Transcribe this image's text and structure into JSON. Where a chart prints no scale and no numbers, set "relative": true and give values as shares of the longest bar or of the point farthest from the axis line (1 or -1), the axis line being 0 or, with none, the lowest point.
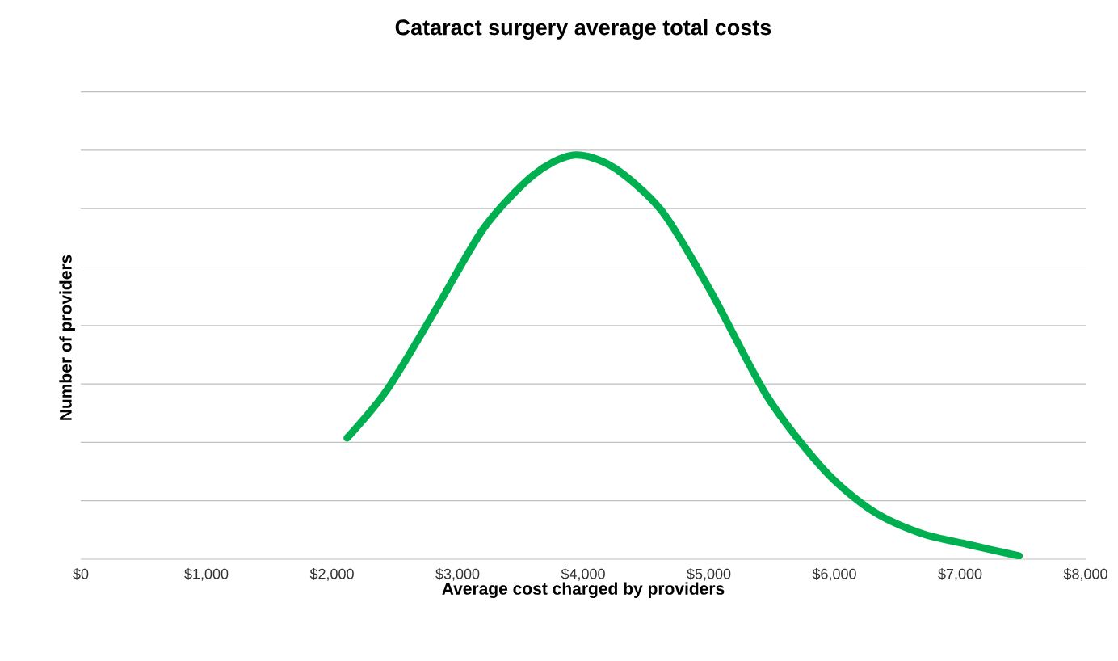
{
  "chart_data": {
    "type": "line",
    "title": "Cataract surgery average total costs",
    "xlabel": "Average cost charged by providers",
    "ylabel": "Number of providers",
    "relative": true,
    "grid": "y",
    "marker": "none",
    "line_style": "solid",
    "xlim": [
      0,
      8000
    ],
    "xticks": [
      {
        "value": 0,
        "label": "$0"
      },
      {
        "value": 1000,
        "label": "$1,000"
      },
      {
        "value": 2000,
        "label": "$2,000"
      },
      {
        "value": 3000,
        "label": "$3,000"
      },
      {
        "value": 4000,
        "label": "$4,000"
      },
      {
        "value": 5000,
        "label": "$5,000"
      },
      {
        "value": 6000,
        "label": "$6,000"
      },
      {
        "value": 7000,
        "label": "$7,000"
      },
      {
        "value": 8000,
        "label": "$8,000"
      }
    ],
    "series": [
      {
        "color": "#00b050",
        "x": [
          2120,
          2440,
          2830,
          3210,
          3600,
          3920,
          4240,
          4630,
          5020,
          5470,
          5920,
          6300,
          6690,
          7070,
          7470
        ],
        "values": [
          0.3,
          0.42,
          0.62,
          0.82,
          0.95,
          1.0,
          0.97,
          0.86,
          0.66,
          0.4,
          0.22,
          0.12,
          0.064,
          0.036,
          0.008
        ]
      }
    ]
  }
}
